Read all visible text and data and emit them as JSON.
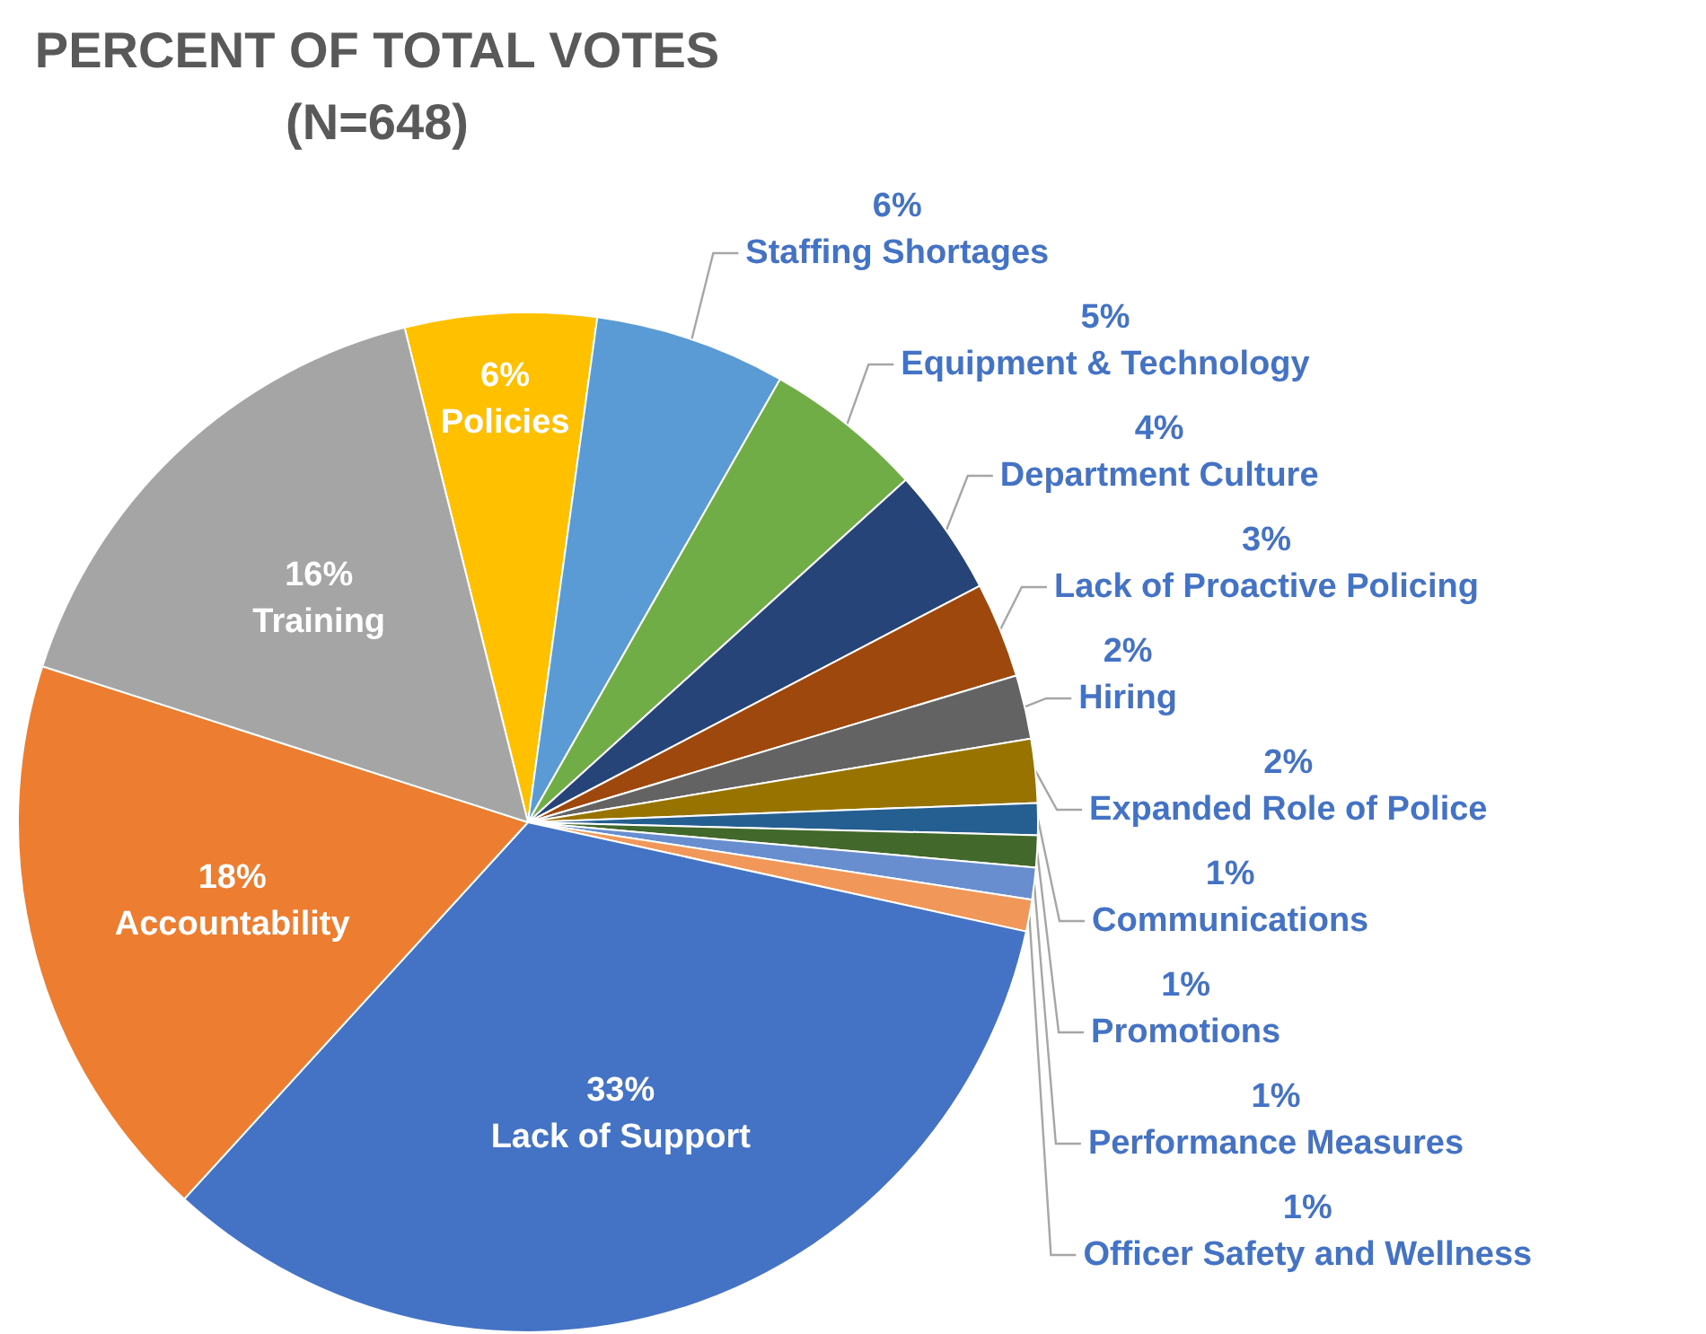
{
  "chart_data": {
    "type": "pie",
    "title": "PERCENT OF TOTAL VOTES\n(N=648)",
    "categories": [
      "Policies",
      "Staffing Shortages",
      "Equipment & Technology",
      "Department Culture",
      "Lack of Proactive Policing",
      "Hiring",
      "Expanded Role of Police",
      "Communications",
      "Promotions",
      "Performance Measures",
      "Officer Safety and Wellness",
      "Lack of Support",
      "Accountability",
      "Training"
    ],
    "values": [
      6,
      6,
      5,
      4,
      3,
      2,
      2,
      1,
      1,
      1,
      1,
      33,
      18,
      16
    ],
    "value_labels": [
      "6%",
      "6%",
      "5%",
      "4%",
      "3%",
      "2%",
      "2%",
      "1%",
      "1%",
      "1%",
      "1%",
      "33%",
      "18%",
      "16%"
    ],
    "colors": [
      "#ffc000",
      "#5b9bd5",
      "#70ad47",
      "#264478",
      "#9e480e",
      "#636363",
      "#997300",
      "#255e91",
      "#43682b",
      "#698ed0",
      "#f1975a",
      "#4472c4",
      "#ed7d31",
      "#a5a5a5"
    ]
  }
}
